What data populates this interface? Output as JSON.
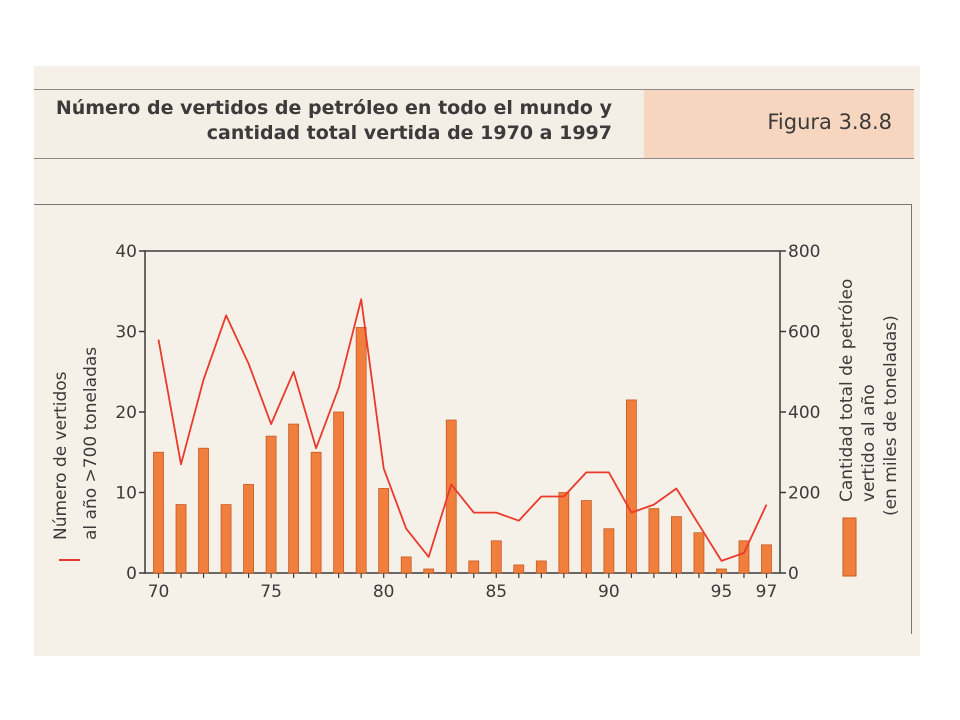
{
  "header": {
    "title_line1": "Número de vertidos de petróleo en todo el mundo y",
    "title_line2": "cantidad total vertida de 1970 a 1997",
    "figure_label": "Figura 3.8.8"
  },
  "chart_data": {
    "type": "bar",
    "x": [
      1970,
      1971,
      1972,
      1973,
      1974,
      1975,
      1976,
      1977,
      1978,
      1979,
      1980,
      1981,
      1982,
      1983,
      1984,
      1985,
      1986,
      1987,
      1988,
      1989,
      1990,
      1991,
      1992,
      1993,
      1994,
      1995,
      1996,
      1997
    ],
    "x_tick_labels": [
      "70",
      "75",
      "80",
      "85",
      "90",
      "95",
      "97"
    ],
    "x_tick_values": [
      1970,
      1975,
      1980,
      1985,
      1990,
      1995,
      1997
    ],
    "series": [
      {
        "kind": "bar",
        "axis": "left",
        "values": [
          15,
          8.5,
          15.5,
          8.5,
          11,
          17,
          18.5,
          15,
          20,
          30.5,
          10.5,
          2,
          0.5,
          19,
          1.5,
          4,
          1,
          1.5,
          10,
          9,
          5.5,
          21.5,
          8,
          7,
          5,
          0.5,
          4,
          3.5
        ]
      },
      {
        "kind": "line",
        "axis": "right",
        "values": [
          580,
          270,
          480,
          640,
          520,
          370,
          500,
          310,
          460,
          680,
          260,
          110,
          40,
          220,
          150,
          150,
          130,
          190,
          190,
          250,
          250,
          150,
          170,
          210,
          120,
          30,
          50,
          170
        ]
      }
    ],
    "ylim_left": [
      0,
      40
    ],
    "yticks_left": [
      0,
      10,
      20,
      30,
      40
    ],
    "ylim_right": [
      0,
      800
    ],
    "yticks_right": [
      0,
      200,
      400,
      600,
      800
    ],
    "ylabel_left_line1": "Número de vertidos",
    "ylabel_left_line2": "al año >700 toneladas",
    "ylabel_right_line1": "Cantidad total de petróleo",
    "ylabel_right_line2": "vertido al año",
    "ylabel_right_line3": "(en miles de toneladas)",
    "colors": {
      "bar": "#f07e3c",
      "bar_edge": "#c85a24",
      "line": "#ea3a2c",
      "axis": "#3c3a3a"
    }
  }
}
